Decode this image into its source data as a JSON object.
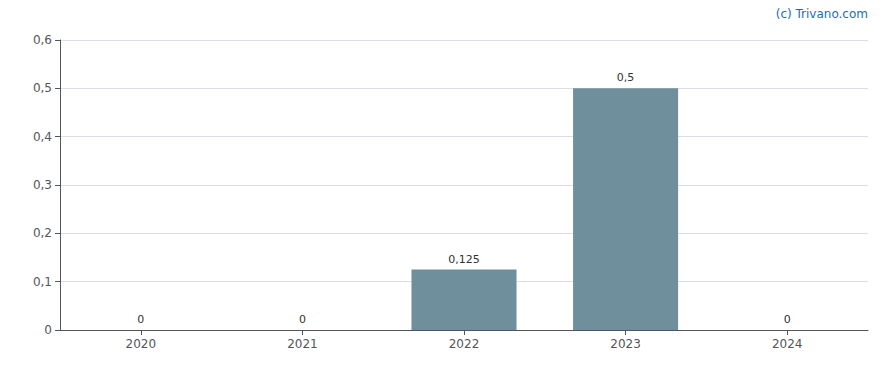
{
  "chart_data": {
    "type": "bar",
    "categories": [
      "2020",
      "2021",
      "2022",
      "2023",
      "2024"
    ],
    "values": [
      0,
      0,
      0.125,
      0.5,
      0
    ],
    "value_labels": [
      "0",
      "0",
      "0,125",
      "0,5",
      "0"
    ],
    "data_labels": true,
    "color": "#6e8f9b",
    "ylim": [
      0,
      0.6
    ],
    "yticks": [
      0,
      {
        "value": 0.1,
        "label": "0,1"
      },
      {
        "value": 0.2,
        "label": "0,2"
      },
      {
        "value": 0.3,
        "label": "0,3"
      },
      {
        "value": 0.4,
        "label": "0,4"
      },
      {
        "value": 0.5,
        "label": "0,5"
      },
      {
        "value": 0.6,
        "label": "0,6"
      }
    ],
    "grid": true,
    "annotations": [
      "(c) Trivano.com"
    ]
  }
}
